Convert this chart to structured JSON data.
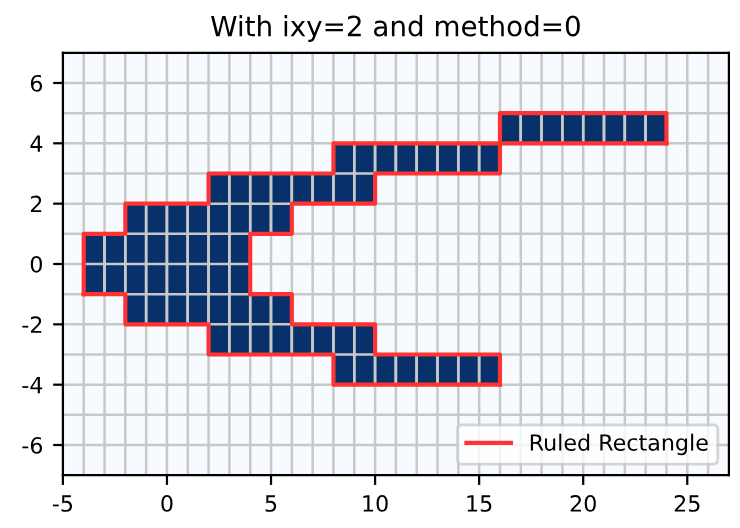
{
  "chart_data": {
    "type": "bar",
    "title": "With ixy=2 and method=0",
    "series": [
      {
        "color": "#08306b",
        "x": [
          -3.5,
          -2.5,
          -1.5,
          -0.5,
          0.5,
          1.5,
          2.5,
          3.5,
          4.5,
          5.5,
          6.5,
          7.5,
          8.5,
          9.5,
          10.5,
          11.5,
          12.5,
          13.5,
          14.5,
          15.5,
          16.5,
          17.5,
          18.5,
          19.5,
          20.5,
          21.5,
          22.5,
          23.5
        ],
        "base": [
          -1,
          -1,
          -2,
          -2,
          -2,
          -2,
          -3,
          -3,
          1,
          1,
          2,
          2,
          2,
          2,
          3,
          3,
          3,
          3,
          3,
          3,
          4,
          4,
          4,
          4,
          4,
          4,
          4,
          4
        ],
        "values": [
          2,
          2,
          4,
          4,
          4,
          4,
          6,
          6,
          2,
          2,
          1,
          1,
          2,
          2,
          1,
          1,
          1,
          1,
          1,
          1,
          1,
          1,
          1,
          1,
          1,
          1,
          1,
          1
        ]
      },
      {
        "color": "#08306b",
        "x": [
          4.5,
          5.5,
          6.5,
          7.5,
          8.5,
          9.5,
          10.5,
          11.5,
          12.5,
          13.5,
          14.5,
          15.5
        ],
        "base": [
          -3,
          -3,
          -3,
          -3,
          -4,
          -4,
          -4,
          -4,
          -4,
          -4,
          -4,
          -4
        ],
        "values": [
          2,
          2,
          1,
          1,
          2,
          2,
          1,
          1,
          1,
          1,
          1,
          1
        ]
      },
      {
        "type": "step",
        "name": "Ruled Rectangle",
        "color": "#ff3333",
        "x": [
          -4,
          -4,
          -2,
          2,
          8,
          16,
          24,
          24
        ],
        "values": [
          -1,
          1,
          2,
          3,
          4,
          5,
          5,
          4
        ]
      },
      {
        "type": "step",
        "color": "#ff3333",
        "x": [
          4,
          4,
          6,
          10,
          16,
          24
        ],
        "values": [
          -1,
          1,
          2,
          3,
          4,
          4
        ]
      },
      {
        "type": "step",
        "color": "#ff3333",
        "x": [
          4,
          6,
          10,
          16,
          16
        ],
        "values": [
          -1,
          -2,
          -3,
          -3,
          -4
        ]
      },
      {
        "type": "step",
        "color": "#ff3333",
        "x": [
          -4,
          -2,
          2,
          8,
          16
        ],
        "values": [
          -1,
          -2,
          -3,
          -4,
          -4
        ]
      }
    ],
    "xlim": [
      -5,
      27
    ],
    "ylim": [
      -7,
      7
    ],
    "xticks": [
      -5,
      0,
      5,
      10,
      15,
      20,
      25
    ],
    "yticks": [
      -6,
      -4,
      -2,
      0,
      2,
      4,
      6
    ],
    "grid": true,
    "legend": "bottom right",
    "line_style": "solid",
    "marker": "none"
  }
}
